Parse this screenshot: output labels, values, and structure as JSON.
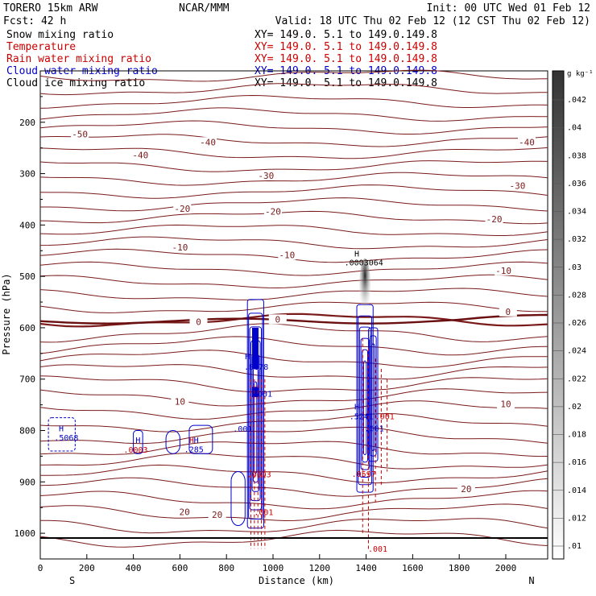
{
  "header": {
    "model": "TORERO  15km ARW",
    "org": "NCAR/MMM",
    "init": "Init: 00 UTC Wed 01 Feb 12",
    "fcst": "Fcst:   42 h",
    "valid": "Valid: 18 UTC Thu 02 Feb 12 (12 CST Thu 02 Feb 12)"
  },
  "legend": [
    {
      "name": "Snow mixing ratio",
      "xy": "",
      "color": "#000000"
    },
    {
      "name": "Temperature",
      "xy": "XY= 149.0.  5.1 to 149.0.149.8",
      "color": "#cc0000"
    },
    {
      "name": "Rain water mixing ratio",
      "xy": "XY= 149.0.  5.1 to 149.0.149.8",
      "color": "#cc0000"
    },
    {
      "name": "Cloud water mixing ratio",
      "xy": "XY= 149.0.  5.1 to 149.0.149.8",
      "color": "#0000cc"
    },
    {
      "name": "Cloud ice mixing ratio",
      "xy": "XY= 149.0.  5.1 to 149.0.149.8",
      "color": "#000000"
    }
  ],
  "legend_xy_top": "XY= 149.0.  5.1 to 149.0.149.8",
  "chart_data": {
    "type": "contour cross-section",
    "xlabel": "Distance (km)",
    "ylabel": "Pressure (hPa)",
    "xlim": [
      0,
      2180
    ],
    "ylim": [
      1050,
      100
    ],
    "x_ticks": [
      0,
      200,
      400,
      600,
      800,
      1000,
      1200,
      1400,
      1600,
      1800,
      2000
    ],
    "y_ticks": [
      200,
      300,
      400,
      500,
      600,
      700,
      800,
      900,
      1000
    ],
    "x_end_labels": {
      "left": "S",
      "right": "N"
    },
    "temperature_contours": {
      "color": "#7a1a1a",
      "interval": 5,
      "labels": [
        {
          "text": "-50",
          "x": 170,
          "p": 225
        },
        {
          "text": "-40",
          "x": 430,
          "p": 265
        },
        {
          "text": "-40",
          "x": 720,
          "p": 240
        },
        {
          "text": "-40",
          "x": 2090,
          "p": 240
        },
        {
          "text": "-30",
          "x": 970,
          "p": 305
        },
        {
          "text": "-30",
          "x": 2050,
          "p": 325
        },
        {
          "text": "-20",
          "x": 610,
          "p": 370
        },
        {
          "text": "-20",
          "x": 1000,
          "p": 375
        },
        {
          "text": "-20",
          "x": 1950,
          "p": 390
        },
        {
          "text": "-10",
          "x": 600,
          "p": 445
        },
        {
          "text": "-10",
          "x": 1060,
          "p": 460
        },
        {
          "text": "-10",
          "x": 1990,
          "p": 490
        },
        {
          "text": "0",
          "x": 680,
          "p": 590
        },
        {
          "text": "0",
          "x": 1020,
          "p": 585
        },
        {
          "text": "0",
          "x": 2010,
          "p": 570
        },
        {
          "text": "10",
          "x": 600,
          "p": 745
        },
        {
          "text": "10",
          "x": 2000,
          "p": 750
        },
        {
          "text": "20",
          "x": 620,
          "p": 960
        },
        {
          "text": "20",
          "x": 760,
          "p": 965
        },
        {
          "text": "20",
          "x": 1830,
          "p": 915
        }
      ]
    },
    "cloud_water_labels": [
      {
        "text": "H",
        "x": 90,
        "p": 795
      },
      {
        "text": ".5068",
        "x": 112,
        "p": 813
      },
      {
        "text": "H",
        "x": 420,
        "p": 818
      },
      {
        "text": "H",
        "x": 670,
        "p": 818
      },
      {
        "text": ".285",
        "x": 660,
        "p": 836
      },
      {
        "text": ".001",
        "x": 870,
        "p": 796
      },
      {
        "text": "H",
        "x": 890,
        "p": 655
      },
      {
        "text": ".8178",
        "x": 928,
        "p": 675
      },
      {
        "text": ".001",
        "x": 955,
        "p": 728
      },
      {
        "text": "H",
        "x": 1360,
        "p": 753
      },
      {
        "text": ".5241",
        "x": 1380,
        "p": 772
      },
      {
        "text": ".001",
        "x": 1435,
        "p": 795
      }
    ],
    "rain_water_labels": [
      {
        "text": ".0003",
        "x": 410,
        "p": 837
      },
      {
        "text": "H",
        "x": 650,
        "p": 818
      },
      {
        "text": ".0003",
        "x": 940,
        "p": 885
      },
      {
        "text": ".001",
        "x": 960,
        "p": 958
      },
      {
        "text": ".001",
        "x": 1480,
        "p": 772
      },
      {
        "text": ".0597",
        "x": 1390,
        "p": 884
      },
      {
        "text": ".001",
        "x": 1450,
        "p": 1030
      }
    ],
    "cloud_ice_labels": [
      {
        "text": "H",
        "x": 1360,
        "p": 455
      },
      {
        "text": ".0003064",
        "x": 1390,
        "p": 472
      }
    ],
    "colorbar": {
      "unit": "g kg⁻¹",
      "ticks": [
        ".042",
        ".04",
        ".038",
        ".036",
        ".034",
        ".032",
        ".03",
        ".028",
        ".026",
        ".024",
        ".022",
        ".02",
        ".018",
        ".016",
        ".014",
        ".012",
        ".01"
      ]
    }
  }
}
